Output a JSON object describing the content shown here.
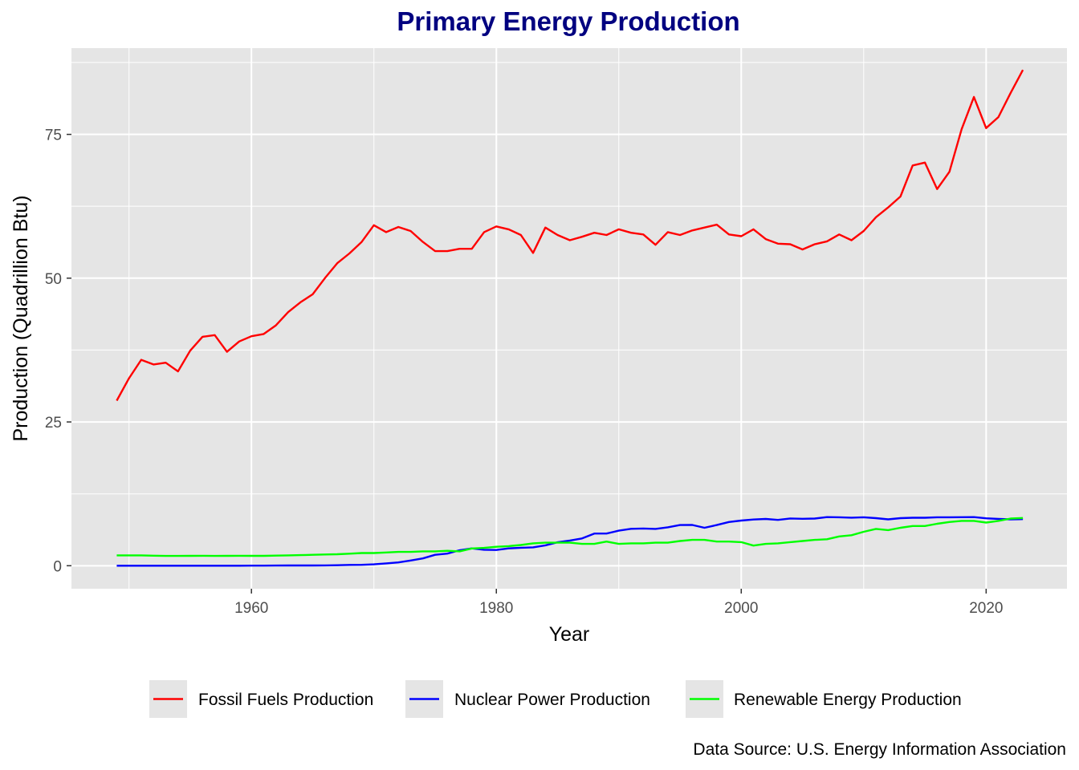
{
  "chart_data": {
    "type": "line",
    "title": "Primary Energy Production",
    "xlabel": "Year",
    "ylabel": "Production (Quadrillion Btu)",
    "caption": "Data Source: U.S. Energy Information Association",
    "xlim": [
      1945.3,
      1953.6
    ],
    "ylim": [
      -4,
      90
    ],
    "x_ticks": [
      1960,
      1980,
      2000,
      2020
    ],
    "y_ticks": [
      0,
      25,
      50,
      75
    ],
    "grid": true,
    "legend_position": "bottom",
    "colors": {
      "title": "#000080",
      "panel": "#e5e5e5",
      "grid": "#ffffff",
      "legend_key_bg": "#e5e5e5"
    },
    "x": [
      1949,
      1950,
      1951,
      1952,
      1953,
      1954,
      1955,
      1956,
      1957,
      1958,
      1959,
      1960,
      1961,
      1962,
      1963,
      1964,
      1965,
      1966,
      1967,
      1968,
      1969,
      1970,
      1971,
      1972,
      1973,
      1974,
      1975,
      1976,
      1977,
      1978,
      1979,
      1980,
      1981,
      1982,
      1983,
      1984,
      1985,
      1986,
      1987,
      1988,
      1989,
      1990,
      1991,
      1992,
      1993,
      1994,
      1995,
      1996,
      1997,
      1998,
      1999,
      2000,
      2001,
      2002,
      2003,
      2004,
      2005,
      2006,
      2007,
      2008,
      2009,
      2010,
      2011,
      2012,
      2013,
      2014,
      2015,
      2016,
      2017,
      2018,
      2019,
      2020,
      2021,
      2022,
      2023
    ],
    "series": [
      {
        "name": "Fossil Fuels Production",
        "color": "#ff0000",
        "values": [
          28.7,
          32.6,
          35.8,
          35.0,
          35.3,
          33.8,
          37.4,
          39.8,
          40.1,
          37.2,
          39.0,
          39.9,
          40.3,
          41.8,
          44.1,
          45.8,
          47.2,
          50.0,
          52.6,
          54.3,
          56.3,
          59.2,
          58.0,
          58.9,
          58.2,
          56.3,
          54.7,
          54.7,
          55.1,
          55.1,
          58.0,
          59.0,
          58.5,
          57.5,
          54.4,
          58.8,
          57.5,
          56.6,
          57.2,
          57.9,
          57.5,
          58.5,
          57.9,
          57.6,
          55.8,
          58.0,
          57.5,
          58.3,
          58.8,
          59.3,
          57.6,
          57.3,
          58.5,
          56.8,
          56.0,
          55.9,
          55.0,
          55.9,
          56.4,
          57.6,
          56.6,
          58.2,
          60.6,
          62.3,
          64.2,
          69.6,
          70.1,
          65.5,
          68.5,
          75.9,
          81.5,
          76.1,
          78.0,
          82.2,
          86.2
        ]
      },
      {
        "name": "Nuclear Power Production",
        "color": "#0000ff",
        "values": [
          0,
          0,
          0,
          0,
          0,
          0,
          0,
          0,
          0,
          0,
          0,
          0.01,
          0.02,
          0.03,
          0.04,
          0.04,
          0.04,
          0.06,
          0.09,
          0.14,
          0.15,
          0.24,
          0.41,
          0.58,
          0.91,
          1.27,
          1.9,
          2.11,
          2.7,
          3.02,
          2.78,
          2.74,
          3.01,
          3.13,
          3.2,
          3.55,
          4.08,
          4.38,
          4.75,
          5.59,
          5.6,
          6.1,
          6.42,
          6.48,
          6.41,
          6.69,
          7.08,
          7.09,
          6.6,
          7.07,
          7.61,
          7.86,
          8.03,
          8.14,
          7.96,
          8.22,
          8.16,
          8.21,
          8.46,
          8.43,
          8.36,
          8.43,
          8.27,
          8.06,
          8.27,
          8.34,
          8.34,
          8.43,
          8.42,
          8.44,
          8.45,
          8.25,
          8.13,
          8.06,
          8.1
        ]
      },
      {
        "name": "Renewable Energy Production",
        "color": "#00ff00",
        "values": [
          1.8,
          1.8,
          1.8,
          1.75,
          1.7,
          1.7,
          1.72,
          1.73,
          1.7,
          1.72,
          1.73,
          1.72,
          1.72,
          1.76,
          1.8,
          1.85,
          1.9,
          1.95,
          2.0,
          2.1,
          2.2,
          2.2,
          2.3,
          2.4,
          2.4,
          2.5,
          2.5,
          2.6,
          2.5,
          3.0,
          3.1,
          3.3,
          3.4,
          3.6,
          3.9,
          4.0,
          4.0,
          4.0,
          3.8,
          3.8,
          4.2,
          3.8,
          3.9,
          3.9,
          4.0,
          4.0,
          4.3,
          4.5,
          4.5,
          4.2,
          4.2,
          4.1,
          3.5,
          3.8,
          3.9,
          4.1,
          4.3,
          4.5,
          4.6,
          5.1,
          5.3,
          5.9,
          6.4,
          6.2,
          6.6,
          6.9,
          6.9,
          7.3,
          7.6,
          7.8,
          7.8,
          7.5,
          7.8,
          8.2,
          8.3
        ]
      }
    ]
  }
}
